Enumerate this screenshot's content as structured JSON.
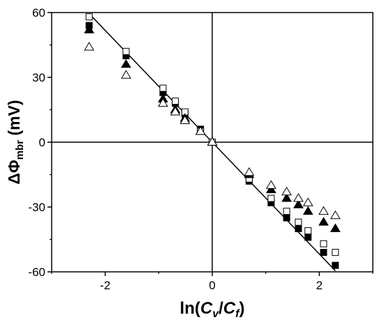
{
  "chart_data": {
    "type": "scatter",
    "title": "",
    "xlabel": {
      "main": "ln(",
      "v1": "C",
      "s1": "v",
      "mid": "/",
      "v2": "C",
      "s2": "f",
      "end": ")"
    },
    "ylabel": {
      "main": "ΔΦ",
      "sub": "mbr",
      "unit": " (mV)"
    },
    "xlim": [
      -3,
      3
    ],
    "ylim": [
      -60,
      60
    ],
    "xticks": [
      {
        "v": -2,
        "label": "-2"
      },
      {
        "v": 0,
        "label": "0"
      },
      {
        "v": 2,
        "label": "2"
      }
    ],
    "yticks": [
      {
        "v": 60,
        "label": "60"
      },
      {
        "v": 30,
        "label": "30"
      },
      {
        "v": 0,
        "label": "0"
      },
      {
        "v": -30,
        "label": "-30"
      },
      {
        "v": -60,
        "label": "-60"
      }
    ],
    "reference_lines": {
      "x": 0,
      "y": 0
    },
    "fit_line": {
      "x": [
        -2.3,
        2.3
      ],
      "y": [
        59.5,
        -59.5
      ]
    },
    "series": [
      {
        "marker": "filled-square",
        "points": [
          [
            -2.3,
            54
          ],
          [
            -1.61,
            40
          ],
          [
            -0.92,
            23
          ],
          [
            -0.69,
            18
          ],
          [
            -0.51,
            13
          ],
          [
            -0.22,
            6
          ],
          [
            0,
            0
          ],
          [
            0.69,
            -18
          ],
          [
            1.1,
            -28
          ],
          [
            1.39,
            -35
          ],
          [
            1.61,
            -40
          ],
          [
            1.79,
            -44
          ],
          [
            2.08,
            -51
          ],
          [
            2.3,
            -57
          ]
        ]
      },
      {
        "marker": "open-square",
        "points": [
          [
            -2.3,
            58
          ],
          [
            -1.61,
            42
          ],
          [
            -0.92,
            25
          ],
          [
            -0.69,
            19
          ],
          [
            -0.51,
            14
          ],
          [
            -0.22,
            5
          ],
          [
            0,
            0
          ],
          [
            0.69,
            -17
          ],
          [
            1.1,
            -26
          ],
          [
            1.39,
            -32
          ],
          [
            1.61,
            -37
          ],
          [
            1.79,
            -41
          ],
          [
            2.08,
            -47
          ],
          [
            2.3,
            -51
          ]
        ]
      },
      {
        "marker": "filled-triangle",
        "points": [
          [
            -2.3,
            52
          ],
          [
            -1.61,
            36
          ],
          [
            -0.92,
            20
          ],
          [
            -0.69,
            15
          ],
          [
            -0.51,
            11
          ],
          [
            -0.22,
            5
          ],
          [
            0,
            0
          ],
          [
            0.69,
            -15
          ],
          [
            1.1,
            -22
          ],
          [
            1.39,
            -26
          ],
          [
            1.61,
            -29
          ],
          [
            1.79,
            -32
          ],
          [
            2.08,
            -37
          ],
          [
            2.3,
            -40
          ]
        ]
      },
      {
        "marker": "open-triangle",
        "points": [
          [
            -2.3,
            44
          ],
          [
            -1.61,
            31
          ],
          [
            -0.92,
            18
          ],
          [
            -0.69,
            14
          ],
          [
            -0.51,
            10
          ],
          [
            -0.22,
            5
          ],
          [
            0,
            0
          ],
          [
            0.69,
            -14
          ],
          [
            1.1,
            -20
          ],
          [
            1.39,
            -23
          ],
          [
            1.61,
            -26
          ],
          [
            1.79,
            -28
          ],
          [
            2.08,
            -32
          ],
          [
            2.3,
            -34
          ]
        ]
      }
    ]
  }
}
